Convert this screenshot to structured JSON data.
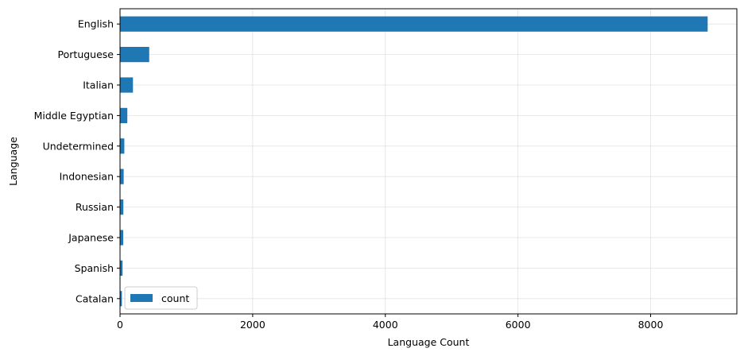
{
  "chart_data": {
    "type": "bar",
    "orientation": "horizontal",
    "categories": [
      "English",
      "Portuguese",
      "Italian",
      "Middle Egyptian",
      "Undetermined",
      "Indonesian",
      "Russian",
      "Japanese",
      "Spanish",
      "Catalan"
    ],
    "series": [
      {
        "name": "count",
        "color": "#1f77b4",
        "values": [
          8860,
          440,
          195,
          110,
          65,
          55,
          50,
          48,
          38,
          28
        ]
      }
    ],
    "xlabel": "Language Count",
    "ylabel": "Language",
    "xlim": [
      0,
      9300
    ],
    "xticks": [
      0,
      2000,
      4000,
      6000,
      8000
    ],
    "grid": true,
    "legend": "lower-left"
  }
}
